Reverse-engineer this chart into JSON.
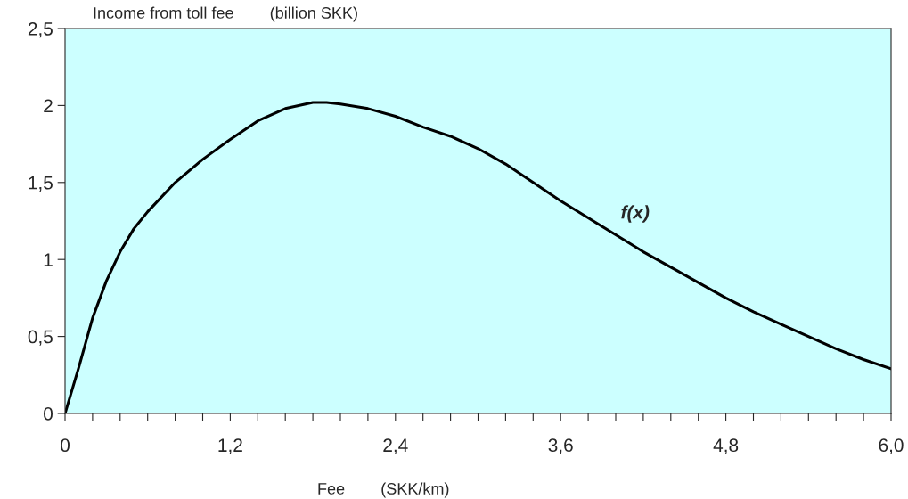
{
  "chart_data": {
    "type": "line",
    "ylabel": "Income from toll fee        (billion SKK)",
    "xlabel": "Fee        (SKK/km)",
    "x": [
      0,
      0.1,
      0.2,
      0.3,
      0.4,
      0.5,
      0.6,
      0.8,
      1.0,
      1.2,
      1.4,
      1.6,
      1.8,
      1.9,
      2.0,
      2.2,
      2.4,
      2.6,
      2.8,
      3.0,
      3.2,
      3.4,
      3.6,
      3.8,
      4.0,
      4.2,
      4.4,
      4.6,
      4.8,
      5.0,
      5.2,
      5.4,
      5.6,
      5.8,
      6.0
    ],
    "series": [
      {
        "name": "f(x)",
        "color": "#000000",
        "values": [
          0,
          0.3,
          0.62,
          0.86,
          1.05,
          1.2,
          1.31,
          1.5,
          1.65,
          1.78,
          1.9,
          1.98,
          2.02,
          2.02,
          2.01,
          1.98,
          1.93,
          1.86,
          1.8,
          1.72,
          1.62,
          1.5,
          1.38,
          1.27,
          1.16,
          1.05,
          0.95,
          0.85,
          0.75,
          0.66,
          0.58,
          0.5,
          0.42,
          0.35,
          0.29
        ]
      }
    ],
    "xlim": [
      0,
      6.0
    ],
    "ylim": [
      0,
      2.5
    ],
    "xticks": [
      {
        "value": 0,
        "label": "0"
      },
      {
        "value": 0.2,
        "label": null
      },
      {
        "value": 0.4,
        "label": null
      },
      {
        "value": 0.6,
        "label": null
      },
      {
        "value": 0.8,
        "label": null
      },
      {
        "value": 1.0,
        "label": null
      },
      {
        "value": 1.2,
        "label": "1,2"
      },
      {
        "value": 1.4,
        "label": null
      },
      {
        "value": 1.6,
        "label": null
      },
      {
        "value": 1.8,
        "label": null
      },
      {
        "value": 2.0,
        "label": null
      },
      {
        "value": 2.2,
        "label": null
      },
      {
        "value": 2.4,
        "label": "2,4"
      },
      {
        "value": 2.6,
        "label": null
      },
      {
        "value": 2.8,
        "label": null
      },
      {
        "value": 3.0,
        "label": null
      },
      {
        "value": 3.2,
        "label": null
      },
      {
        "value": 3.4,
        "label": null
      },
      {
        "value": 3.6,
        "label": "3,6"
      },
      {
        "value": 3.8,
        "label": null
      },
      {
        "value": 4.0,
        "label": null
      },
      {
        "value": 4.2,
        "label": null
      },
      {
        "value": 4.4,
        "label": null
      },
      {
        "value": 4.6,
        "label": null
      },
      {
        "value": 4.8,
        "label": "4,8"
      },
      {
        "value": 5.0,
        "label": null
      },
      {
        "value": 5.2,
        "label": null
      },
      {
        "value": 5.4,
        "label": null
      },
      {
        "value": 5.6,
        "label": null
      },
      {
        "value": 5.8,
        "label": null
      },
      {
        "value": 6.0,
        "label": "6,0"
      }
    ],
    "yticks": [
      0,
      {
        "value": 0.5,
        "label": "0,5"
      },
      1,
      {
        "value": 1.5,
        "label": "1,5"
      },
      2,
      {
        "value": 2.5,
        "label": "2,5"
      }
    ],
    "grid": false,
    "legend": false,
    "marker": "none",
    "line_style": "solid"
  }
}
